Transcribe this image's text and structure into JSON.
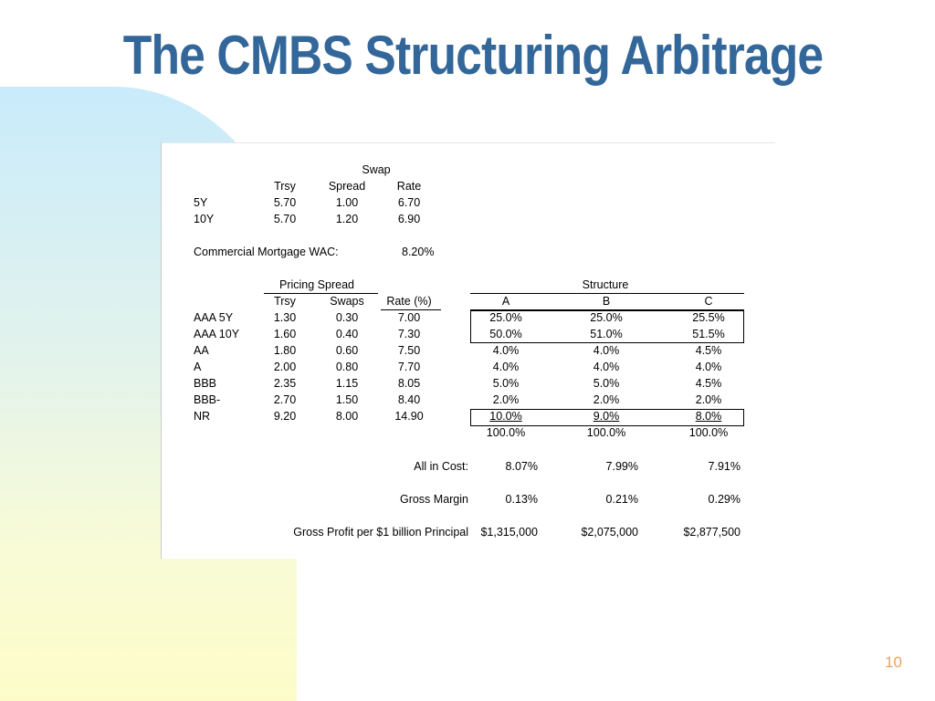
{
  "slide": {
    "title": "The CMBS Structuring Arbitrage",
    "page_number": "10",
    "title_color": "#33679a",
    "page_number_color": "#f0a05a"
  },
  "swap_table": {
    "group_header": "Swap",
    "headers": [
      "Trsy",
      "Spread",
      "Rate"
    ],
    "rows": [
      {
        "label": "5Y",
        "trsy": "5.70",
        "spread": "1.00",
        "rate": "6.70"
      },
      {
        "label": "10Y",
        "trsy": "5.70",
        "spread": "1.20",
        "rate": "6.90"
      }
    ]
  },
  "wac": {
    "label": "Commercial Mortgage WAC:",
    "value": "8.20%"
  },
  "pricing_table": {
    "group_header": "Pricing Spread",
    "structure_header": "Structure",
    "headers": [
      "Trsy",
      "Swaps",
      "Rate (%)",
      "A",
      "B",
      "C"
    ],
    "rows": [
      {
        "label": "AAA  5Y",
        "trsy": "1.30",
        "swaps": "0.30",
        "rate": "7.00",
        "a": "25.0%",
        "b": "25.0%",
        "c": "25.5%"
      },
      {
        "label": "AAA  10Y",
        "trsy": "1.60",
        "swaps": "0.40",
        "rate": "7.30",
        "a": "50.0%",
        "b": "51.0%",
        "c": "51.5%"
      },
      {
        "label": "AA",
        "trsy": "1.80",
        "swaps": "0.60",
        "rate": "7.50",
        "a": "4.0%",
        "b": "4.0%",
        "c": "4.5%"
      },
      {
        "label": "A",
        "trsy": "2.00",
        "swaps": "0.80",
        "rate": "7.70",
        "a": "4.0%",
        "b": "4.0%",
        "c": "4.0%"
      },
      {
        "label": "BBB",
        "trsy": "2.35",
        "swaps": "1.15",
        "rate": "8.05",
        "a": "5.0%",
        "b": "5.0%",
        "c": "4.5%"
      },
      {
        "label": "BBB-",
        "trsy": "2.70",
        "swaps": "1.50",
        "rate": "8.40",
        "a": "2.0%",
        "b": "2.0%",
        "c": "2.0%"
      },
      {
        "label": "NR",
        "trsy": "9.20",
        "swaps": "8.00",
        "rate": "14.90",
        "a": "10.0%",
        "b": "9.0%",
        "c": "8.0%"
      }
    ],
    "totals": {
      "a": "100.0%",
      "b": "100.0%",
      "c": "100.0%"
    }
  },
  "summary": {
    "all_in_cost": {
      "label": "All in Cost:",
      "a": "8.07%",
      "b": "7.99%",
      "c": "7.91%"
    },
    "gross_margin": {
      "label": "Gross Margin",
      "a": "0.13%",
      "b": "0.21%",
      "c": "0.29%"
    },
    "gross_profit": {
      "label": "Gross Profit per $1 billion Principal",
      "a": "$1,315,000",
      "b": "$2,075,000",
      "c": "$2,877,500"
    }
  }
}
